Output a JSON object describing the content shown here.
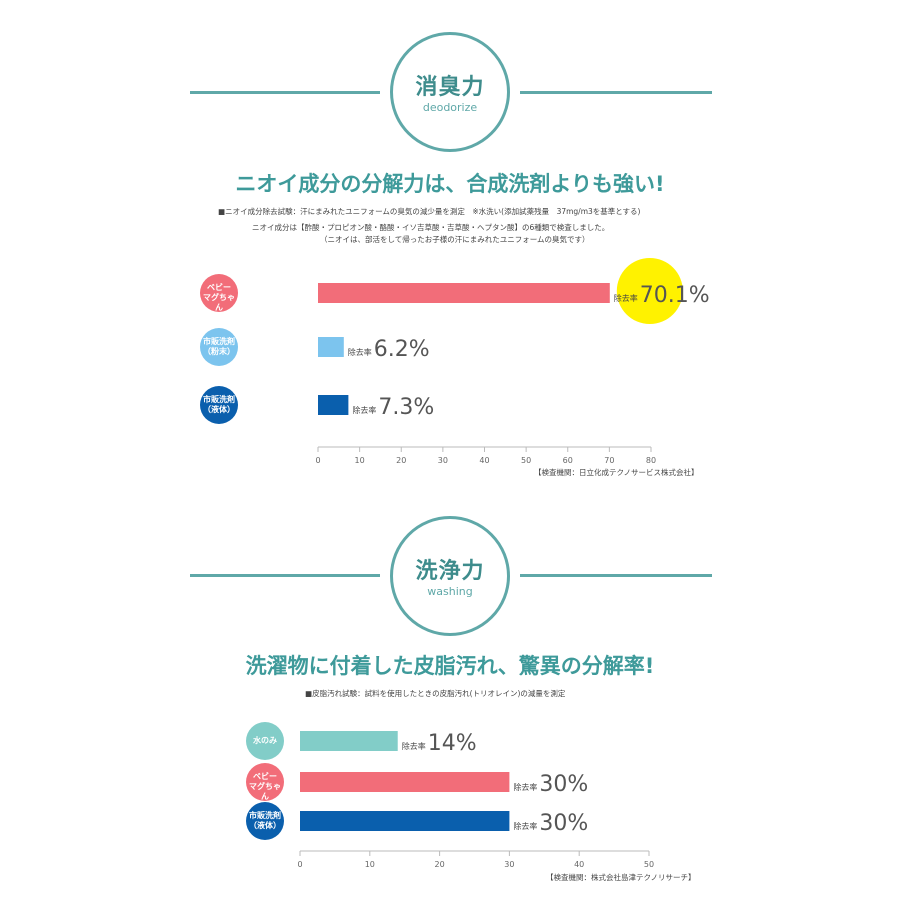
{
  "section1": {
    "title_jp": "消臭力",
    "title_en": "deodorize",
    "headline": "ニオイ成分の分解力は、合成洗剤よりも強い!",
    "note1": "■ニオイ成分除去試験：汗にまみれたユニフォームの臭気の減少量を測定　※水洗い(添加試薬残量　37mg/m3を基準とする)",
    "note2": "ニオイ成分は【酢酸・プロピオン酸・酪酸・イソ吉草酸・吉草酸・ヘプタン酸】の6種類で検査しました。",
    "note3": "（ニオイは、部活をして帰ったお子様の汗にまみれたユニフォームの臭気です）",
    "source": "【検査機関：日立化成テクノサービス株式会社】"
  },
  "section2": {
    "title_jp": "洗浄力",
    "title_en": "washing",
    "headline": "洗濯物に付着した皮脂汚れ、驚異の分解率!",
    "note1": "■皮脂汚れ試験：試料を使用したときの皮脂汚れ(トリオレイン)の減量を測定",
    "source": "【検査機関：株式会社島津テクノリサーチ】"
  },
  "chart_data": [
    {
      "type": "bar",
      "orientation": "horizontal",
      "categories": [
        "ベビーマグちゃん",
        "市販洗剤（粉末）",
        "市販洗剤（液体）"
      ],
      "category_lines": [
        [
          "ベビー",
          "マグちゃん"
        ],
        [
          "市販洗剤",
          "（粉末）"
        ],
        [
          "市販洗剤",
          "（液体）"
        ]
      ],
      "values": [
        70.1,
        6.2,
        7.3
      ],
      "value_labels": [
        "70.1%",
        "6.2%",
        "7.3%"
      ],
      "value_prefix": "除去率",
      "colors": [
        "#f26d79",
        "#7cc4ee",
        "#0a5fad"
      ],
      "badge_colors": [
        "#f26d79",
        "#7cc4ee",
        "#0a5fad"
      ],
      "highlight": {
        "index": 0,
        "color": "#fff200"
      },
      "xlim": [
        0,
        80
      ],
      "xticks": [
        0,
        10,
        20,
        30,
        40,
        50,
        60,
        70,
        80
      ],
      "grid": false
    },
    {
      "type": "bar",
      "orientation": "horizontal",
      "categories": [
        "水のみ",
        "ベビーマグちゃん",
        "市販洗剤（液体）"
      ],
      "category_lines": [
        [
          "水のみ"
        ],
        [
          "ベビー",
          "マグちゃん"
        ],
        [
          "市販洗剤",
          "（液体）"
        ]
      ],
      "values": [
        14,
        30,
        30
      ],
      "value_labels": [
        "14%",
        "30%",
        "30%"
      ],
      "value_prefix": "除去率",
      "colors": [
        "#82cdc8",
        "#f26d79",
        "#0a5fad"
      ],
      "badge_colors": [
        "#82cdc8",
        "#f26d79",
        "#0a5fad"
      ],
      "xlim": [
        0,
        50
      ],
      "xticks": [
        0,
        10,
        20,
        30,
        40,
        50
      ],
      "grid": false
    }
  ]
}
